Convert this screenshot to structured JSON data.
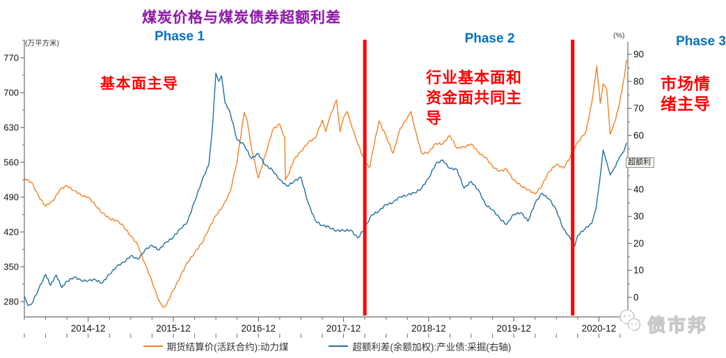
{
  "chart_data": {
    "type": "line",
    "title": "煤炭价格与煤炭债券超额利差",
    "title_color": "#8E1BA8",
    "x_axis": {
      "tick_labels": [
        "2014-12",
        "2015-12",
        "2016-12",
        "2017-12",
        "2018-12",
        "2019-12",
        "2020-12"
      ],
      "range_note": "data spans approx 2014-03 to 2021-04, monthly index 0-85",
      "label_months": [
        9,
        21,
        33,
        45,
        57,
        69,
        81
      ]
    },
    "left_axis": {
      "unit": "(万平方米)",
      "range": [
        280,
        770
      ],
      "ticks": [
        770,
        700,
        630,
        560,
        490,
        420,
        350,
        280
      ]
    },
    "right_axis": {
      "unit": "(%)",
      "range": [
        0,
        90
      ],
      "ticks": [
        90,
        80,
        70,
        60,
        50,
        40,
        30,
        20,
        10,
        0
      ]
    },
    "grid": false,
    "legend_position": "bottom",
    "series": [
      {
        "name": "期货结算价(活跃合约):动力煤",
        "axis": "left",
        "color": "#F28124",
        "points": [
          [
            0,
            528
          ],
          [
            1,
            520
          ],
          [
            2,
            492
          ],
          [
            3,
            472
          ],
          [
            4,
            482
          ],
          [
            5,
            505
          ],
          [
            6,
            513
          ],
          [
            7,
            503
          ],
          [
            8,
            494
          ],
          [
            9,
            490
          ],
          [
            10,
            474
          ],
          [
            11,
            458
          ],
          [
            12,
            447
          ],
          [
            13,
            443
          ],
          [
            14,
            431
          ],
          [
            15,
            412
          ],
          [
            16,
            394
          ],
          [
            17,
            356
          ],
          [
            18,
            320
          ],
          [
            19,
            281
          ],
          [
            19.6,
            268
          ],
          [
            20,
            272
          ],
          [
            21,
            303
          ],
          [
            22,
            331
          ],
          [
            23,
            359
          ],
          [
            24,
            378
          ],
          [
            25,
            397
          ],
          [
            26,
            426
          ],
          [
            27,
            453
          ],
          [
            28,
            472
          ],
          [
            29,
            500
          ],
          [
            30,
            563
          ],
          [
            31,
            660
          ],
          [
            31.4,
            645
          ],
          [
            32,
            590
          ],
          [
            33,
            528
          ],
          [
            34,
            576
          ],
          [
            35,
            625
          ],
          [
            36,
            637
          ],
          [
            36.5,
            615
          ],
          [
            36.7,
            611
          ],
          [
            36.8,
            525
          ],
          [
            37.2,
            535
          ],
          [
            38,
            565
          ],
          [
            39,
            582
          ],
          [
            40,
            600
          ],
          [
            41,
            608
          ],
          [
            42,
            645
          ],
          [
            42.5,
            622
          ],
          [
            43,
            648
          ],
          [
            44,
            685
          ],
          [
            44.5,
            622
          ],
          [
            45,
            650
          ],
          [
            45.5,
            662
          ],
          [
            46,
            640
          ],
          [
            47,
            598
          ],
          [
            48,
            560
          ],
          [
            48.7,
            550
          ],
          [
            49,
            575
          ],
          [
            50,
            643
          ],
          [
            51,
            612
          ],
          [
            52,
            578
          ],
          [
            53,
            628
          ],
          [
            54,
            650
          ],
          [
            54.5,
            662
          ],
          [
            55,
            630
          ],
          [
            56,
            578
          ],
          [
            57,
            580
          ],
          [
            58,
            598
          ],
          [
            59,
            597
          ],
          [
            60,
            614
          ],
          [
            61,
            588
          ],
          [
            62,
            591
          ],
          [
            63,
            597
          ],
          [
            64,
            580
          ],
          [
            65,
            570
          ],
          [
            66,
            552
          ],
          [
            67,
            542
          ],
          [
            68,
            546
          ],
          [
            69,
            524
          ],
          [
            70,
            513
          ],
          [
            71,
            505
          ],
          [
            72,
            496
          ],
          [
            73,
            514
          ],
          [
            74,
            542
          ],
          [
            75,
            556
          ],
          [
            76,
            548
          ],
          [
            77,
            572
          ],
          [
            78,
            600
          ],
          [
            79.2,
            622
          ],
          [
            80,
            680
          ],
          [
            80.7,
            753
          ],
          [
            81.2,
            678
          ],
          [
            81.6,
            718
          ],
          [
            82.1,
            708
          ],
          [
            82.6,
            616
          ],
          [
            83.2,
            640
          ],
          [
            83.9,
            678
          ],
          [
            84.6,
            733
          ],
          [
            84.9,
            766
          ]
        ]
      },
      {
        "name": "超额利差(余额加权):产业债:采掘(右轴)",
        "axis": "right",
        "color": "#1E6E9F",
        "points": [
          [
            0,
            0.5
          ],
          [
            0.5,
            -3
          ],
          [
            1,
            -2.5
          ],
          [
            2,
            3
          ],
          [
            3,
            8.5
          ],
          [
            3.7,
            4.5
          ],
          [
            4.5,
            8.3
          ],
          [
            5.3,
            3.6
          ],
          [
            6,
            6
          ],
          [
            7,
            7.5
          ],
          [
            8,
            6.3
          ],
          [
            9,
            6.2
          ],
          [
            10,
            6.6
          ],
          [
            11,
            5.3
          ],
          [
            12,
            8.6
          ],
          [
            13,
            11.4
          ],
          [
            14,
            13
          ],
          [
            15,
            15.4
          ],
          [
            16,
            14.1
          ],
          [
            17,
            17.5
          ],
          [
            18,
            19.3
          ],
          [
            19,
            17.6
          ],
          [
            20,
            20.5
          ],
          [
            21,
            22.3
          ],
          [
            22,
            25.4
          ],
          [
            23,
            28
          ],
          [
            24,
            35.5
          ],
          [
            25,
            43
          ],
          [
            26,
            49
          ],
          [
            26.5,
            62
          ],
          [
            27,
            83
          ],
          [
            27.4,
            80
          ],
          [
            27.8,
            82
          ],
          [
            28.3,
            72
          ],
          [
            29,
            68.5
          ],
          [
            30,
            58.3
          ],
          [
            31,
            56.5
          ],
          [
            32,
            51.4
          ],
          [
            33,
            53.2
          ],
          [
            34,
            48.9
          ],
          [
            35,
            47.1
          ],
          [
            36,
            43.6
          ],
          [
            37,
            41.2
          ],
          [
            38,
            42.9
          ],
          [
            39,
            44.5
          ],
          [
            40,
            35
          ],
          [
            41,
            28.5
          ],
          [
            42,
            26.6
          ],
          [
            43,
            26
          ],
          [
            44,
            24.6
          ],
          [
            45,
            24.8
          ],
          [
            46,
            24.9
          ],
          [
            47,
            22
          ],
          [
            48,
            25.7
          ],
          [
            49,
            30.6
          ],
          [
            50,
            32
          ],
          [
            51,
            34.4
          ],
          [
            52,
            35.2
          ],
          [
            53,
            37.3
          ],
          [
            54,
            37.9
          ],
          [
            55,
            38.7
          ],
          [
            56,
            40.4
          ],
          [
            57,
            44.2
          ],
          [
            58,
            49.5
          ],
          [
            59,
            50.8
          ],
          [
            60,
            47.7
          ],
          [
            61,
            47.3
          ],
          [
            62,
            40.4
          ],
          [
            63,
            42.9
          ],
          [
            64,
            39.8
          ],
          [
            65,
            34.4
          ],
          [
            66,
            32.5
          ],
          [
            67,
            29.3
          ],
          [
            68,
            27
          ],
          [
            69,
            30.8
          ],
          [
            70,
            31.4
          ],
          [
            71,
            28.2
          ],
          [
            72,
            34.9
          ],
          [
            73,
            38.6
          ],
          [
            74,
            36.4
          ],
          [
            75,
            32.3
          ],
          [
            76,
            25.4
          ],
          [
            77,
            21.7
          ],
          [
            77.6,
            19
          ],
          [
            78,
            23
          ],
          [
            79,
            25.3
          ],
          [
            80,
            27.4
          ],
          [
            80.6,
            33
          ],
          [
            81.2,
            45
          ],
          [
            81.6,
            54.6
          ],
          [
            82.1,
            50
          ],
          [
            82.6,
            45.3
          ],
          [
            83.2,
            48
          ],
          [
            83.9,
            52
          ],
          [
            84.5,
            54
          ],
          [
            84.9,
            57.2
          ]
        ]
      }
    ],
    "dividers": {
      "color": "#FF0000",
      "positions_month": [
        48.0,
        77.3
      ]
    },
    "annotations": {
      "phase1": {
        "text": "Phase 1",
        "color": "#0070C6"
      },
      "phase2": {
        "text": "Phase 2",
        "color": "#0070C6"
      },
      "phase3": {
        "text": "Phase 3",
        "color": "#0070C6"
      },
      "note1": {
        "text": "基本面主导",
        "color": "#FF0000"
      },
      "note2": {
        "lines": [
          "行业基本面和",
          "资金面共同主",
          "导"
        ],
        "color": "#FF0000"
      },
      "note3": {
        "lines": [
          "市场情",
          "绪主导"
        ],
        "color": "#FF0000"
      }
    }
  },
  "tooltip": {
    "text": "超额利"
  },
  "watermark": {
    "text": "债市邦"
  }
}
